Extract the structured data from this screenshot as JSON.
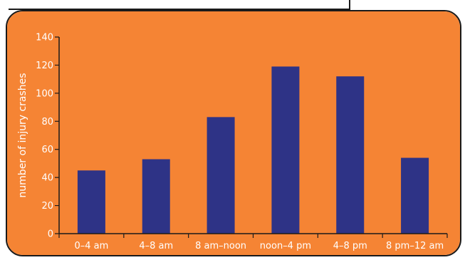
{
  "colors": {
    "panel_background": "#f58434",
    "bar": "#2e3386",
    "axis": "#1a1a1a",
    "text": "#ffffff",
    "frame": "#1a1a1a"
  },
  "chart_data": {
    "type": "bar",
    "title": "",
    "xlabel": "",
    "ylabel": "number of injury crashes",
    "categories": [
      "0–4 am",
      "4–8 am",
      "8 am–noon",
      "noon–4 pm",
      "4–8 pm",
      "8 pm–12 am"
    ],
    "values": [
      45,
      53,
      83,
      119,
      112,
      54
    ],
    "ylim": [
      0,
      140
    ],
    "yticks": [
      0,
      20,
      40,
      60,
      80,
      100,
      120,
      140
    ],
    "grid": false,
    "legend": "none"
  }
}
